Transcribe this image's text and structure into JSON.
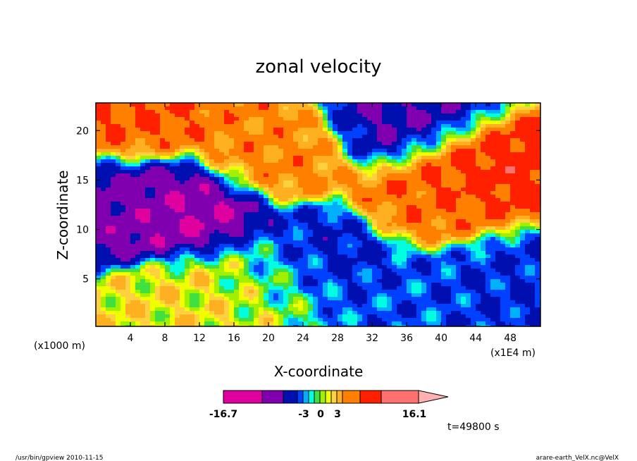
{
  "chart_data": {
    "type": "heatmap",
    "title": "zonal velocity",
    "xlabel": "X-coordinate",
    "ylabel": "Z-coordinate",
    "x_unit_label": "(x1E4 m)",
    "y_unit_label": "(x1000 m)",
    "xlim": [
      0,
      51.5
    ],
    "ylim": [
      0.2,
      22.8
    ],
    "x_ticks": [
      4,
      8,
      12,
      16,
      20,
      24,
      28,
      32,
      36,
      40,
      44,
      48
    ],
    "y_ticks": [
      5,
      10,
      15,
      20
    ],
    "colorbar": {
      "min_label": "-16.7",
      "max_label": "16.1",
      "labels": [
        "-3",
        "0",
        "3"
      ],
      "levels": [
        -16.7,
        -12,
        -8,
        -5,
        -3,
        -2,
        -1,
        0,
        1,
        2,
        3,
        5,
        8,
        12,
        16.1
      ],
      "colors": [
        "#e000a0",
        "#8000b0",
        "#0010b0",
        "#0040ff",
        "#00b0ff",
        "#00ffe0",
        "#40e040",
        "#a0f000",
        "#f0ff00",
        "#ffd040",
        "#ffb020",
        "#ff8000",
        "#ff2000",
        "#ff7070",
        "#ffb0b0"
      ]
    },
    "annotation": "t=49800 s",
    "field_description_regions": [
      {
        "x": 3,
        "z": 13,
        "value": -9
      },
      {
        "x": 10,
        "z": 12,
        "value": -12
      },
      {
        "x": 20,
        "z": 18,
        "value": 6
      },
      {
        "x": 40,
        "z": 13,
        "value": 7
      },
      {
        "x": 44,
        "z": 16,
        "value": 10
      },
      {
        "x": 26,
        "z": 7,
        "value": -6
      },
      {
        "x": 36,
        "z": 3,
        "value": -4
      },
      {
        "x": 47,
        "z": 5,
        "value": -5
      },
      {
        "x": 4,
        "z": 21,
        "value": 8
      },
      {
        "x": 36,
        "z": 21,
        "value": -8
      },
      {
        "x": 12,
        "z": 3,
        "value": 2
      },
      {
        "x": 20,
        "z": 5,
        "value": 0
      }
    ]
  },
  "footer": {
    "left": "/usr/bin/gpview   2010-11-15",
    "right": "arare-earth_VelX.nc@VelX"
  }
}
